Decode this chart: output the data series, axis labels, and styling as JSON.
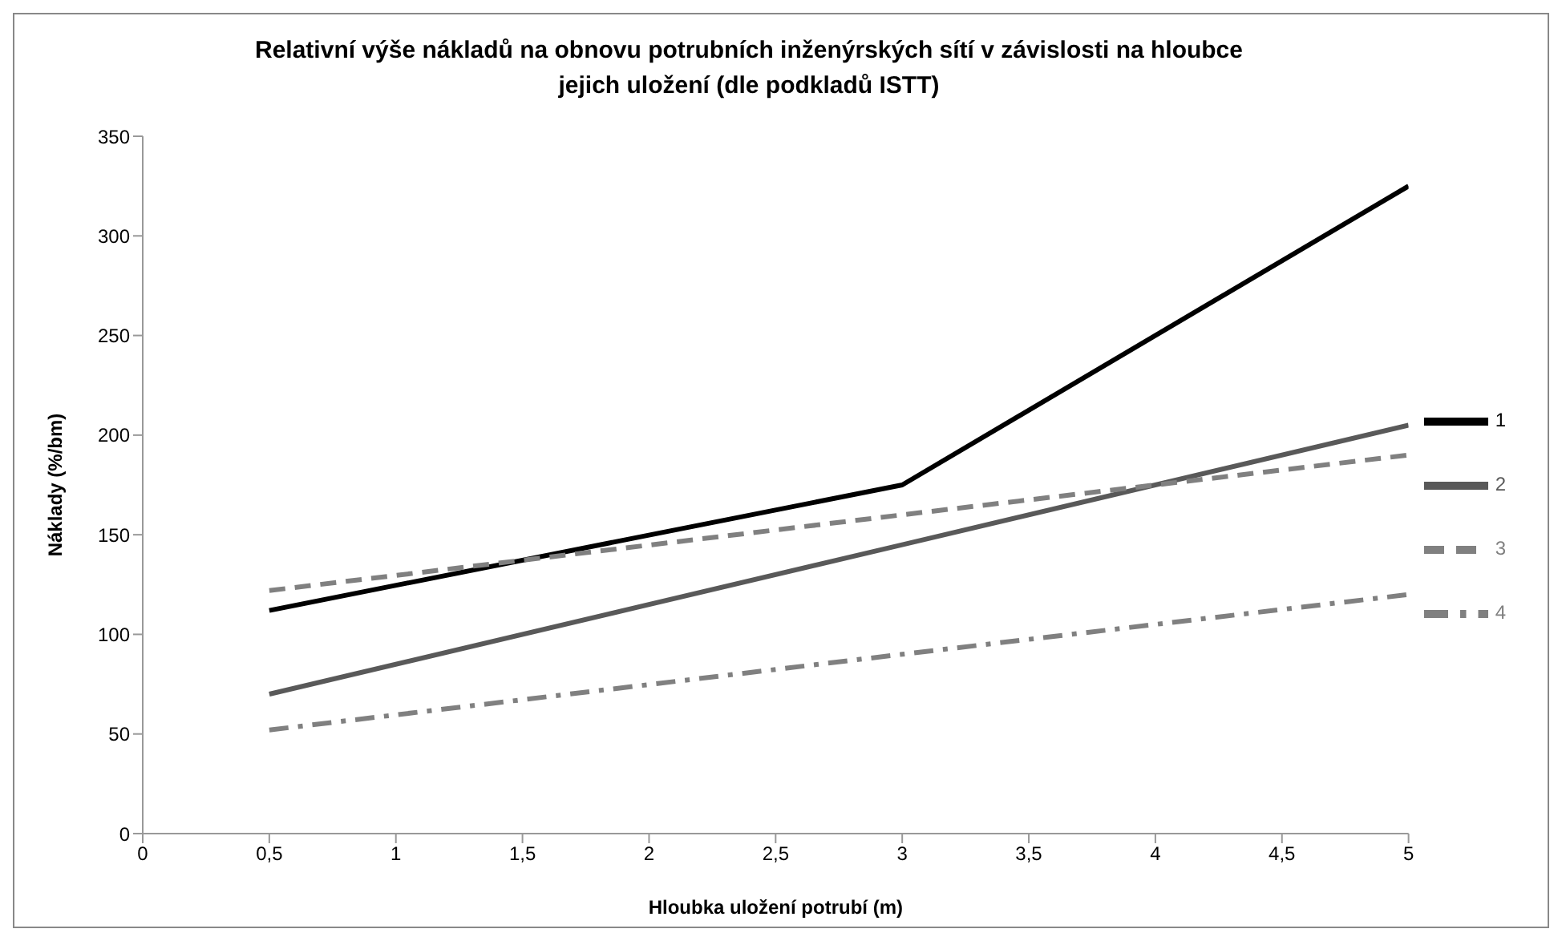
{
  "chart_data": {
    "type": "line",
    "title": "Relativní výše nákladů na obnovu potrubních inženýrských sítí v závislosti na hloubce jejich uložení (dle podkladů ISTT)",
    "xlabel": "Hloubka uložení potrubí (m)",
    "ylabel": "Náklady (%/bm)",
    "x": [
      0.5,
      3,
      5
    ],
    "series": [
      {
        "name": "1",
        "color": "#000000",
        "values": [
          112,
          175,
          325
        ],
        "line_style": "solid"
      },
      {
        "name": "2",
        "color": "#595959",
        "values": [
          70,
          145,
          205
        ],
        "line_style": "solid"
      },
      {
        "name": "3",
        "color": "#808080",
        "values": [
          122,
          160,
          190
        ],
        "line_style": "dashed"
      },
      {
        "name": "4",
        "color": "#808080",
        "values": [
          52,
          90,
          120
        ],
        "line_style": "dashdot"
      }
    ],
    "xlim": [
      0,
      5
    ],
    "xticks": [
      0,
      {
        "value": 0.5,
        "label": "0,5"
      },
      1,
      {
        "value": 1.5,
        "label": "1,5"
      },
      2,
      {
        "value": 2.5,
        "label": "2,5"
      },
      3,
      {
        "value": 3.5,
        "label": "3,5"
      },
      4,
      {
        "value": 4.5,
        "label": "4,5"
      },
      5
    ],
    "ylim": [
      0,
      350
    ],
    "yticks": [
      0,
      50,
      100,
      150,
      200,
      250,
      300,
      350
    ],
    "grid": false,
    "legend": "right",
    "marker": "none"
  }
}
